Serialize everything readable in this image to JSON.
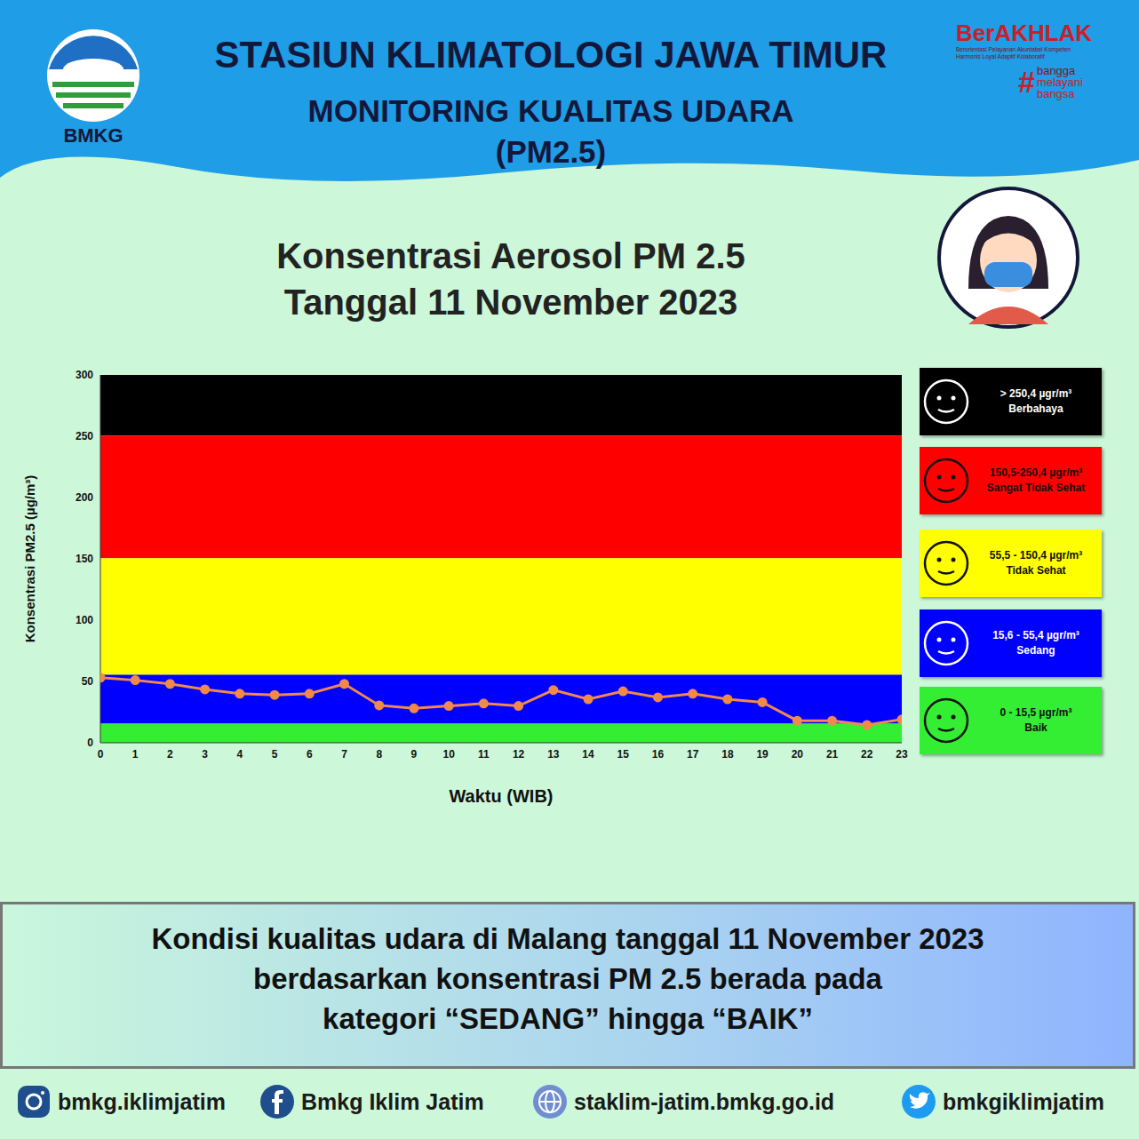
{
  "header": {
    "lines": [
      "STASIUN KLIMATOLOGI JAWA TIMUR",
      "MONITORING KUALITAS UDARA",
      "(PM2.5)"
    ],
    "logo_text": "BMKG",
    "brand": "BerAKHLAK",
    "brand_small": [
      "Berorientasi Pelayanan Akuntabel Kompeten",
      "Harmonis Loyal Adaptif Kolaboratif"
    ],
    "hashtag": "#",
    "hashtag_words": [
      "bangga",
      "melayani",
      "bangsa"
    ]
  },
  "chart_data": {
    "type": "line",
    "title": "Konsentrasi Aerosol PM 2.5",
    "subtitle": "Tanggal 11 November 2023",
    "x_label": "Waktu (WIB)",
    "y_label": "Konsentrasi  PM2.5 (µg/m³)",
    "x": [
      0,
      1,
      2,
      3,
      4,
      5,
      6,
      7,
      8,
      9,
      10,
      11,
      12,
      13,
      14,
      15,
      16,
      17,
      18,
      19,
      20,
      21,
      22,
      23
    ],
    "values": [
      53,
      51,
      48,
      43.5,
      40,
      39,
      40,
      48,
      30.5,
      28,
      30,
      32,
      30,
      43,
      35.5,
      42,
      37,
      40,
      35.5,
      33,
      18,
      18,
      14.5,
      19
    ],
    "color": "#f0894a",
    "marker": "circle",
    "xlim": [
      0,
      23
    ],
    "xticks": [
      0,
      1,
      2,
      3,
      4,
      5,
      6,
      7,
      8,
      9,
      10,
      11,
      12,
      13,
      14,
      15,
      16,
      17,
      18,
      19,
      20,
      21,
      22,
      23
    ],
    "ylim": [
      0,
      300
    ],
    "yticks": [
      0,
      50,
      100,
      150,
      200,
      250,
      300
    ],
    "grid": false,
    "bands": [
      {
        "from": 250.5,
        "to": 300,
        "color": "#000000",
        "range_label": "> 250,4 µgr/m³",
        "label": "Berbahaya"
      },
      {
        "from": 150.5,
        "to": 250.5,
        "color": "#ff0000",
        "range_label": "150,5-250,4 µgr/m³",
        "label": "Sangat Tidak Sehat"
      },
      {
        "from": 55.5,
        "to": 150.5,
        "color": "#ffff00",
        "range_label": "55,5 - 150,4 µgr/m³",
        "label": "Tidak Sehat"
      },
      {
        "from": 15.5,
        "to": 55.5,
        "color": "#0000ff",
        "range_label": "15,6 - 55,4 µgr/m³",
        "label": "Sedang"
      },
      {
        "from": 0,
        "to": 15.5,
        "color": "#33ee33",
        "range_label": "0 - 15,5 µgr/m³",
        "label": "Baik"
      }
    ]
  },
  "conclusion": [
    "Kondisi kualitas udara di Malang tanggal 11 November 2023",
    "berdasarkan konsentrasi PM 2.5 berada pada",
    "kategori “SEDANG” hingga “BAIK”"
  ],
  "footer": [
    "bmkg.iklimjatim",
    "Bmkg Iklim Jatim",
    "staklim-jatim.bmkg.go.id",
    "bmkgiklimjatim"
  ]
}
